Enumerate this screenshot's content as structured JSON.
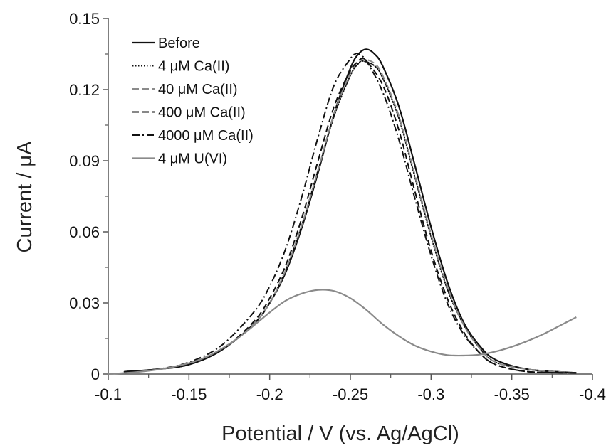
{
  "chart_data": {
    "type": "line",
    "xlabel": "Potential / V (vs. Ag/AgCl)",
    "ylabel": "Current / μA",
    "xlim": [
      -0.1,
      -0.4
    ],
    "ylim": [
      0,
      0.15
    ],
    "x_reversed": true,
    "x_ticks": [
      -0.1,
      -0.15,
      -0.2,
      -0.25,
      -0.3,
      -0.35,
      -0.4
    ],
    "x_tick_labels": [
      "-0.1",
      "-0.15",
      "-0.2",
      "-0.25",
      "-0.3",
      "-0.35",
      "-0.4"
    ],
    "y_ticks": [
      0,
      0.03,
      0.06,
      0.09,
      0.12,
      0.15
    ],
    "y_tick_labels": [
      "0",
      "0.03",
      "0.06",
      "0.09",
      "0.12",
      "0.15"
    ],
    "grid": false,
    "legend_position": "top-left",
    "series": [
      {
        "name": "Before",
        "color": "#111111",
        "dash": "solid",
        "x": [
          -0.11,
          -0.13,
          -0.15,
          -0.17,
          -0.19,
          -0.2,
          -0.21,
          -0.22,
          -0.23,
          -0.24,
          -0.25,
          -0.255,
          -0.26,
          -0.265,
          -0.27,
          -0.28,
          -0.29,
          -0.3,
          -0.31,
          -0.32,
          -0.33,
          -0.34,
          -0.36,
          -0.39
        ],
        "y": [
          0.001,
          0.002,
          0.004,
          0.01,
          0.021,
          0.03,
          0.043,
          0.062,
          0.085,
          0.11,
          0.129,
          0.135,
          0.137,
          0.135,
          0.13,
          0.113,
          0.088,
          0.062,
          0.039,
          0.022,
          0.012,
          0.006,
          0.002,
          0.0005
        ]
      },
      {
        "name": "4 μM Ca(II)",
        "color": "#111111",
        "dash": "dotted",
        "x": [
          -0.11,
          -0.13,
          -0.15,
          -0.17,
          -0.19,
          -0.2,
          -0.21,
          -0.22,
          -0.23,
          -0.24,
          -0.25,
          -0.255,
          -0.258,
          -0.265,
          -0.27,
          -0.28,
          -0.29,
          -0.3,
          -0.31,
          -0.32,
          -0.33,
          -0.34,
          -0.36,
          -0.39
        ],
        "y": [
          0.001,
          0.002,
          0.004,
          0.01,
          0.021,
          0.03,
          0.044,
          0.063,
          0.086,
          0.109,
          0.126,
          0.131,
          0.132,
          0.13,
          0.125,
          0.108,
          0.083,
          0.058,
          0.036,
          0.021,
          0.011,
          0.005,
          0.002,
          0.0005
        ]
      },
      {
        "name": "40 μM Ca(II)",
        "color": "#8a8a8a",
        "dash": "dashed",
        "x": [
          -0.11,
          -0.13,
          -0.15,
          -0.17,
          -0.19,
          -0.2,
          -0.21,
          -0.22,
          -0.23,
          -0.24,
          -0.25,
          -0.255,
          -0.258,
          -0.265,
          -0.27,
          -0.28,
          -0.29,
          -0.3,
          -0.31,
          -0.32,
          -0.33,
          -0.34,
          -0.36,
          -0.39
        ],
        "y": [
          0.001,
          0.002,
          0.004,
          0.01,
          0.021,
          0.03,
          0.044,
          0.063,
          0.086,
          0.11,
          0.127,
          0.132,
          0.133,
          0.131,
          0.126,
          0.109,
          0.084,
          0.059,
          0.037,
          0.021,
          0.011,
          0.005,
          0.002,
          0.0005
        ]
      },
      {
        "name": "400 μM Ca(II)",
        "color": "#111111",
        "dash": "dashed",
        "x": [
          -0.11,
          -0.13,
          -0.15,
          -0.17,
          -0.19,
          -0.2,
          -0.21,
          -0.22,
          -0.23,
          -0.24,
          -0.25,
          -0.255,
          -0.257,
          -0.26,
          -0.27,
          -0.28,
          -0.29,
          -0.3,
          -0.31,
          -0.32,
          -0.33,
          -0.34,
          -0.36,
          -0.39
        ],
        "y": [
          0.001,
          0.002,
          0.004,
          0.01,
          0.022,
          0.032,
          0.046,
          0.066,
          0.09,
          0.113,
          0.128,
          0.132,
          0.133,
          0.132,
          0.122,
          0.103,
          0.077,
          0.052,
          0.032,
          0.018,
          0.009,
          0.004,
          0.001,
          0.0005
        ]
      },
      {
        "name": "4000 μM Ca(II)",
        "color": "#111111",
        "dash": "dashdot",
        "x": [
          -0.11,
          -0.13,
          -0.15,
          -0.17,
          -0.19,
          -0.2,
          -0.21,
          -0.22,
          -0.23,
          -0.24,
          -0.25,
          -0.253,
          -0.255,
          -0.26,
          -0.27,
          -0.28,
          -0.29,
          -0.3,
          -0.31,
          -0.32,
          -0.33,
          -0.34,
          -0.36,
          -0.39
        ],
        "y": [
          0.001,
          0.002,
          0.005,
          0.012,
          0.026,
          0.037,
          0.053,
          0.075,
          0.1,
          0.122,
          0.133,
          0.135,
          0.135,
          0.132,
          0.119,
          0.099,
          0.074,
          0.05,
          0.03,
          0.017,
          0.009,
          0.004,
          0.001,
          0.0005
        ]
      },
      {
        "name": "4 μM U(VI)",
        "color": "#8a8a8a",
        "dash": "solid",
        "x": [
          -0.1,
          -0.12,
          -0.14,
          -0.16,
          -0.18,
          -0.2,
          -0.21,
          -0.22,
          -0.23,
          -0.24,
          -0.25,
          -0.26,
          -0.27,
          -0.28,
          -0.29,
          -0.3,
          -0.31,
          -0.32,
          -0.33,
          -0.34,
          -0.35,
          -0.36,
          -0.37,
          -0.38,
          -0.39
        ],
        "y": [
          0.0,
          0.001,
          0.003,
          0.007,
          0.015,
          0.026,
          0.031,
          0.034,
          0.0355,
          0.035,
          0.032,
          0.027,
          0.021,
          0.016,
          0.012,
          0.0095,
          0.008,
          0.0078,
          0.0082,
          0.0095,
          0.0115,
          0.014,
          0.017,
          0.0205,
          0.024
        ]
      }
    ]
  }
}
